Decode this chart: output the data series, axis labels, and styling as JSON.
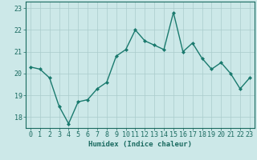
{
  "x": [
    0,
    1,
    2,
    3,
    4,
    5,
    6,
    7,
    8,
    9,
    10,
    11,
    12,
    13,
    14,
    15,
    16,
    17,
    18,
    19,
    20,
    21,
    22,
    23
  ],
  "y": [
    20.3,
    20.2,
    19.8,
    18.5,
    17.7,
    18.7,
    18.8,
    19.3,
    19.6,
    20.8,
    21.1,
    22.0,
    21.5,
    21.3,
    21.1,
    22.8,
    21.0,
    21.4,
    20.7,
    20.2,
    20.5,
    20.0,
    19.3,
    19.8
  ],
  "line_color": "#1a7a6e",
  "marker": "D",
  "marker_size": 2,
  "bg_color": "#cce8e8",
  "grid_color": "#aacccc",
  "axis_color": "#1a6a60",
  "xlabel": "Humidex (Indice chaleur)",
  "ylim": [
    17.5,
    23.3
  ],
  "yticks": [
    18,
    19,
    20,
    21,
    22,
    23
  ],
  "xlim": [
    -0.5,
    23.5
  ],
  "xlabel_fontsize": 6.5,
  "tick_fontsize": 6
}
